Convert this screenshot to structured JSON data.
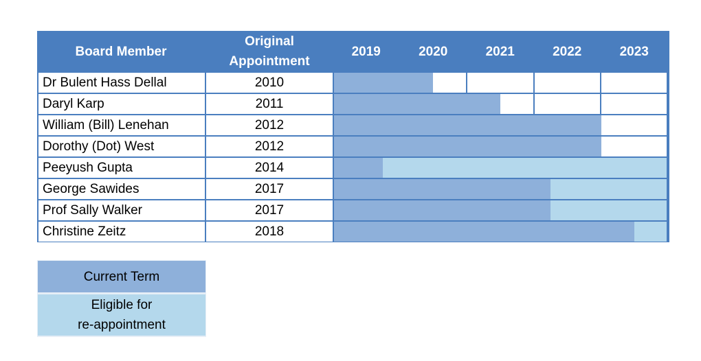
{
  "chart_data": {
    "type": "table",
    "columns": [
      "Board Member",
      "Original\nAppointment",
      "2019",
      "2020",
      "2021",
      "2022",
      "2023"
    ],
    "years": [
      2019,
      2020,
      2021,
      2022,
      2023
    ],
    "rows": [
      {
        "member": "Dr Bulent Hass Dellal",
        "appointed": "2010",
        "current_term_end": 2020.5,
        "eligible_end": 2020.5
      },
      {
        "member": "Daryl Karp",
        "appointed": "2011",
        "current_term_end": 2021.5,
        "eligible_end": 2021.5
      },
      {
        "member": "William (Bill) Lenehan",
        "appointed": "2012",
        "current_term_end": 2023.0,
        "eligible_end": 2023.0
      },
      {
        "member": "Dorothy (Dot) West",
        "appointed": "2012",
        "current_term_end": 2023.0,
        "eligible_end": 2023.0
      },
      {
        "member": "Peeyush Gupta",
        "appointed": "2014",
        "current_term_end": 2019.75,
        "eligible_end": 2024.0
      },
      {
        "member": "George Sawides",
        "appointed": "2017",
        "current_term_end": 2022.25,
        "eligible_end": 2024.0
      },
      {
        "member": "Prof Sally Walker",
        "appointed": "2017",
        "current_term_end": 2022.25,
        "eligible_end": 2024.0
      },
      {
        "member": "Christine Zeitz",
        "appointed": "2018",
        "current_term_end": 2023.5,
        "eligible_end": 2024.0
      }
    ],
    "legend": [
      {
        "label": "Current Term",
        "color": "#8eb0da"
      },
      {
        "label": "Eligible for\nre-appointment",
        "color": "#b4d8ec"
      }
    ],
    "colors": {
      "header": "#4a7ebf",
      "current": "#8eb0da",
      "eligible": "#b4d8ec"
    }
  }
}
